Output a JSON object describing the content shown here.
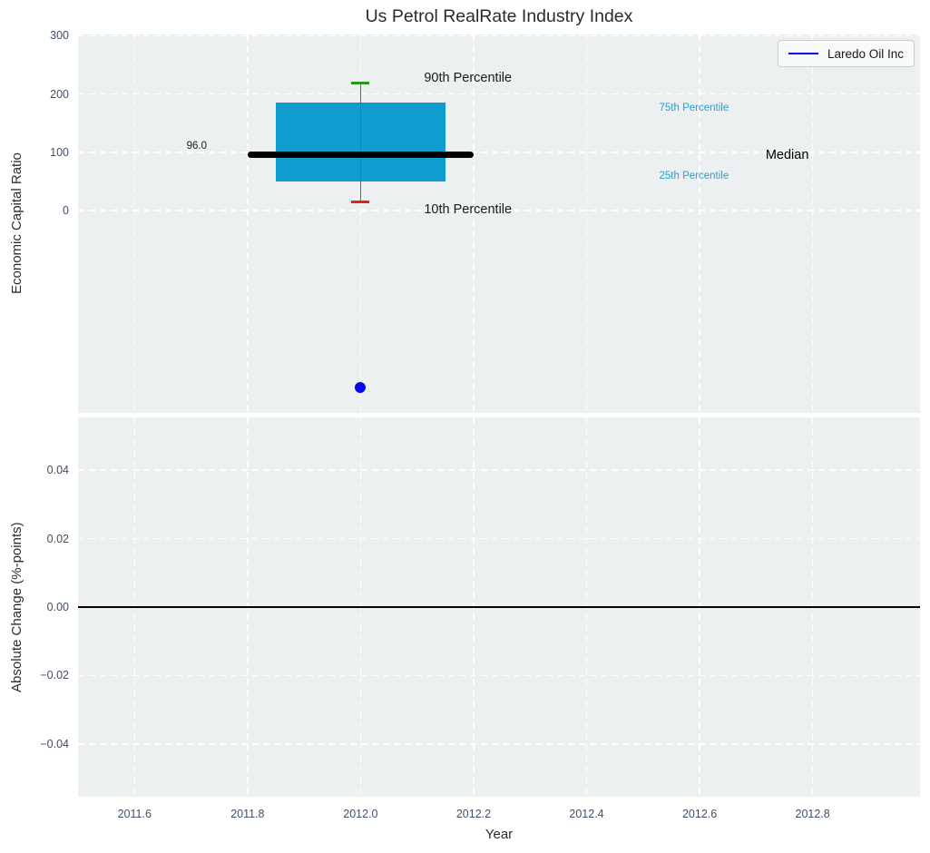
{
  "figure": {
    "title": "Us Petrol RealRate Industry Index",
    "background_color": "#ffffff",
    "axes_background_color": "#edf0f1",
    "grid_color": "#ffffff",
    "tick_label_color": "#3f5068",
    "title_color": "#2b2b2b"
  },
  "legend": {
    "label": "Laredo Oil Inc",
    "line_color": "#0505e6",
    "position": "upper-right"
  },
  "chart_data": [
    {
      "type": "box",
      "panel": "top",
      "title": "Us Petrol RealRate Industry Index",
      "xlabel": "",
      "ylabel": "Economic Capital Ratio",
      "xlim": [
        2011.5,
        2012.99
      ],
      "ylim": [
        -347,
        302
      ],
      "xticks": [
        2011.6,
        2011.8,
        2012.0,
        2012.2,
        2012.4,
        2012.6,
        2012.8
      ],
      "xtick_labels": [],
      "yticks": [
        0,
        100,
        200,
        300
      ],
      "ytick_labels": [
        "0",
        "100",
        "200",
        "300"
      ],
      "grid": true,
      "legend_position": "upper-right",
      "box": {
        "x": 2012.0,
        "p10": 15,
        "q1": 50,
        "median": 96,
        "q3": 186,
        "p90": 219,
        "median_label": "96.0",
        "box_half_width": 0.15,
        "median_half_width": 0.2,
        "cap_half_width": 0.016,
        "box_color": "#0f9dd0",
        "median_color": "#000000",
        "whisker_color": "#5f6a70",
        "p90_cap_color": "#219a21",
        "p10_cap_color": "#e02020"
      },
      "scatter": {
        "name": "Laredo Oil Inc",
        "x": 2012.0,
        "y": -303,
        "color": "#0909ee"
      },
      "annotations": [
        {
          "text": "90th Percentile",
          "x": 2012.19,
          "y": 227,
          "color": "#1a1a1a",
          "font_size": 14.5
        },
        {
          "text": "10th Percentile",
          "x": 2012.19,
          "y": 2,
          "color": "#1a1a1a",
          "font_size": 14.5
        },
        {
          "text": "75th Percentile",
          "x": 2012.59,
          "y": 176,
          "color": "#25a0d0",
          "font_size": 11.5
        },
        {
          "text": "25th Percentile",
          "x": 2012.59,
          "y": 59,
          "color": "#25a0d0",
          "font_size": 11.5
        },
        {
          "text": "Median",
          "x": 2012.755,
          "y": 95,
          "color": "#000000",
          "font_size": 14.5
        },
        {
          "text": "96.0",
          "x": 2011.71,
          "y": 111,
          "color": "#1a1a1a",
          "font_size": 11.5
        }
      ]
    },
    {
      "type": "line",
      "panel": "bottom",
      "title": "",
      "xlabel": "Year",
      "ylabel": "Absolute Change (%-points)",
      "xlim": [
        2011.5,
        2012.99
      ],
      "ylim": [
        -0.0554,
        0.0554
      ],
      "xticks": [
        2011.6,
        2011.8,
        2012.0,
        2012.2,
        2012.4,
        2012.6,
        2012.8
      ],
      "xtick_labels": [
        "2011.6",
        "2011.8",
        "2012.0",
        "2012.2",
        "2012.4",
        "2012.6",
        "2012.8"
      ],
      "yticks": [
        0.04,
        0.02,
        0.0,
        -0.02,
        -0.04
      ],
      "ytick_labels": [
        "0.04",
        "0.02",
        "0.00",
        "−0.02",
        "−0.04"
      ],
      "grid": true,
      "zero_line": {
        "y": 0.0,
        "color": "#000000"
      },
      "series": []
    }
  ]
}
